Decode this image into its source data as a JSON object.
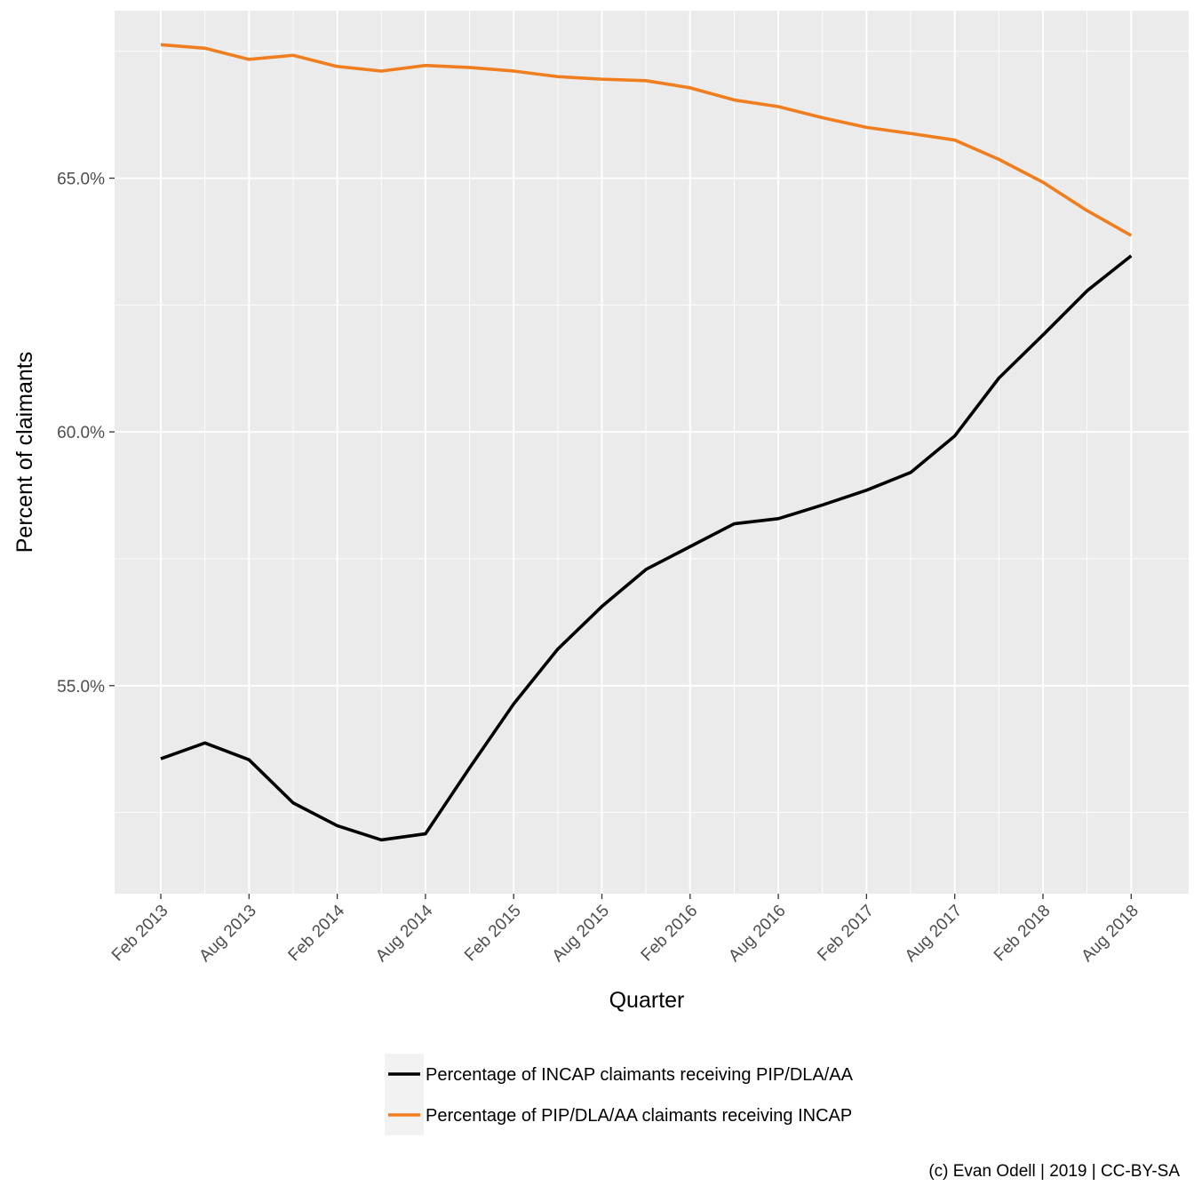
{
  "chart_data": {
    "type": "line",
    "xlabel": "Quarter",
    "ylabel": "Percent of claimants",
    "caption": "(c) Evan Odell | 2019 | CC-BY-SA",
    "x": [
      "Feb 2013",
      "May 2013",
      "Aug 2013",
      "Nov 2013",
      "Feb 2014",
      "May 2014",
      "Aug 2014",
      "Nov 2014",
      "Feb 2015",
      "May 2015",
      "Aug 2015",
      "Nov 2015",
      "Feb 2016",
      "May 2016",
      "Aug 2016",
      "Nov 2016",
      "Feb 2017",
      "May 2017",
      "Aug 2017",
      "Nov 2017",
      "Feb 2018",
      "May 2018",
      "Aug 2018"
    ],
    "x_tick_labels": [
      "Feb 2013",
      "Aug 2013",
      "Feb 2014",
      "Aug 2014",
      "Feb 2015",
      "Aug 2015",
      "Feb 2016",
      "Aug 2016",
      "Feb 2017",
      "Aug 2017",
      "Feb 2018",
      "Aug 2018"
    ],
    "ylim": [
      50.9,
      68.3
    ],
    "y_ticks": [
      55,
      60,
      65
    ],
    "y_tick_labels": [
      "55.0%",
      "60.0%",
      "65.0%"
    ],
    "grid": true,
    "legend_position": "bottom",
    "series": [
      {
        "name": "Percentage of INCAP claimants receiving PIP/DLA/AA",
        "color": "#000000",
        "values": [
          53.56,
          53.87,
          53.54,
          52.69,
          52.24,
          51.96,
          52.08,
          53.38,
          54.64,
          55.72,
          56.56,
          57.29,
          57.74,
          58.19,
          58.29,
          58.56,
          58.85,
          59.2,
          59.92,
          61.06,
          61.91,
          62.78,
          63.47
        ]
      },
      {
        "name": "Percentage of PIP/DLA/AA claimants receiving INCAP",
        "color": "#F07D1E",
        "values": [
          67.63,
          67.56,
          67.34,
          67.42,
          67.2,
          67.11,
          67.22,
          67.18,
          67.11,
          67.0,
          66.95,
          66.92,
          66.78,
          66.54,
          66.41,
          66.19,
          66.0,
          65.88,
          65.75,
          65.37,
          64.92,
          64.36,
          63.87
        ]
      }
    ]
  }
}
